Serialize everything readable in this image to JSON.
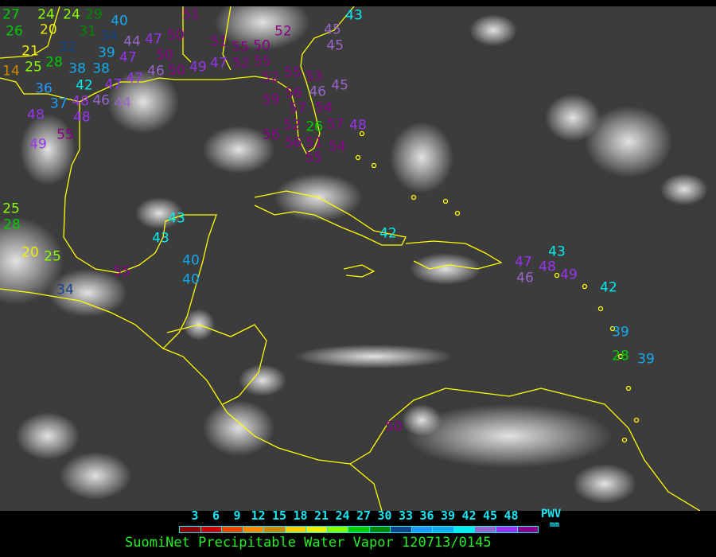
{
  "title": "SuomiNet Precipitable Water Vapor 120713/0145",
  "legend": {
    "unit_label": "PWV",
    "unit": "mm",
    "ticks": [
      "3",
      "6",
      "9",
      "12",
      "15",
      "18",
      "21",
      "24",
      "27",
      "30",
      "33",
      "36",
      "39",
      "42",
      "45",
      "48"
    ],
    "colors": [
      "#8b0000",
      "#cc0000",
      "#ee4400",
      "#ff8800",
      "#cc8800",
      "#ffcc00",
      "#eeee00",
      "#88ff00",
      "#00cc00",
      "#008800",
      "#114488",
      "#2299ff",
      "#11aaee",
      "#00eeee",
      "#9966cc",
      "#9933ee",
      "#880088"
    ]
  },
  "coastline_color": "#ffff00",
  "stations": [
    "27",
    "24",
    "24",
    "29",
    "26",
    "20",
    "31",
    "40",
    "34",
    "39",
    "32",
    "44",
    "47",
    "50",
    "50",
    "51",
    "21",
    "28",
    "38",
    "38",
    "47",
    "46",
    "42",
    "47",
    "47",
    "14",
    "25",
    "36",
    "37",
    "48",
    "46",
    "44",
    "48",
    "48",
    "55",
    "49",
    "50",
    "49",
    "47",
    "52",
    "55",
    "51",
    "50",
    "52",
    "55",
    "52",
    "55",
    "56",
    "53",
    "46",
    "57",
    "54",
    "45",
    "59",
    "52",
    "26",
    "57",
    "51",
    "56",
    "54",
    "55",
    "56",
    "45",
    "43",
    "45",
    "48",
    "25",
    "28",
    "20",
    "25",
    "34",
    "55",
    "43",
    "43",
    "40",
    "40",
    "42",
    "47",
    "46",
    "48",
    "43",
    "49",
    "42",
    "39",
    "28",
    "39",
    "50"
  ]
}
